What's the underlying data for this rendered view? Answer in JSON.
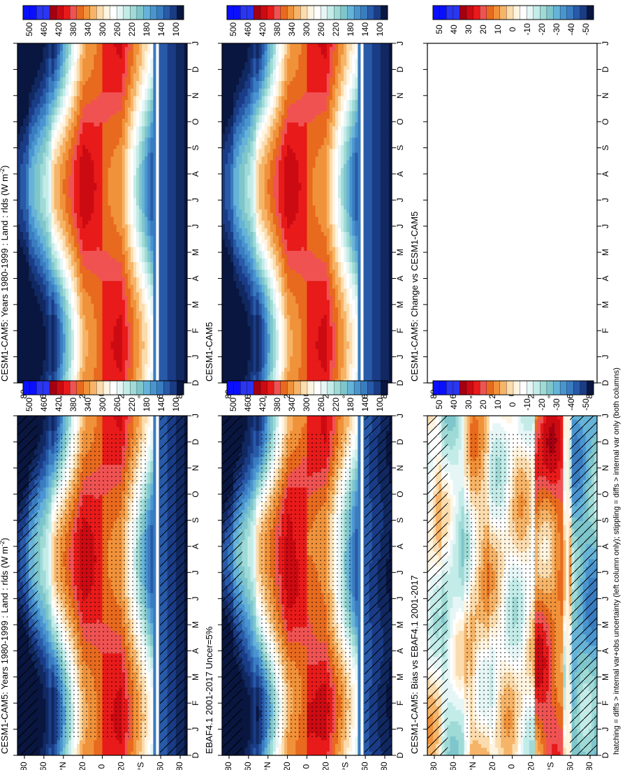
{
  "footer": "hatching = diffs > internal var+obs uncertainty (left column only); stippling = diffs > internal var only (both columns)",
  "chart_data": [
    {
      "type": "heatmap",
      "title": "CESM1-CAM5: Years 1980-1999 : Land : rlds (W m",
      "title_sup": "-2",
      "title_close": ")",
      "month_labels": [
        "D",
        "J",
        "F",
        "M",
        "A",
        "M",
        "J",
        "J",
        "A",
        "S",
        "O",
        "N",
        "D",
        "J"
      ],
      "lat_labels": [
        "80",
        "60",
        "°N",
        "20",
        "0",
        "20",
        "°S",
        "60",
        "80"
      ],
      "colorbar_labels": [
        "500",
        "460",
        "420",
        "380",
        "340",
        "300",
        "260",
        "220",
        "180",
        "140",
        "100"
      ],
      "hatching": true,
      "stippling": true
    },
    {
      "type": "heatmap",
      "title": "EBAF4.1 2001-2017 Uncer=5%",
      "month_labels": [
        "D",
        "J",
        "F",
        "M",
        "A",
        "M",
        "J",
        "J",
        "A",
        "S",
        "O",
        "N",
        "D",
        "J"
      ],
      "lat_labels": [
        "80",
        "60",
        "°N",
        "20",
        "0",
        "20",
        "°S",
        "60",
        "80"
      ],
      "colorbar_labels": [
        "500",
        "460",
        "420",
        "380",
        "340",
        "300",
        "260",
        "220",
        "180",
        "140",
        "100"
      ],
      "hatching": true,
      "stippling": true
    },
    {
      "type": "heatmap",
      "title": "CESM1-CAM5: Bias vs EBAF4.1 2001-2017",
      "month_labels": [
        "D",
        "J",
        "F",
        "M",
        "A",
        "M",
        "J",
        "J",
        "A",
        "S",
        "O",
        "N",
        "D",
        "J"
      ],
      "lat_labels": [
        "80",
        "60",
        "°N",
        "20",
        "0",
        "20",
        "°S",
        "60",
        "80"
      ],
      "colorbar_labels": [
        "50",
        "40",
        "30",
        "20",
        "10",
        "0",
        "-10",
        "-20",
        "-30",
        "-40",
        "-50"
      ],
      "hatching": true,
      "stippling": true
    },
    {
      "type": "heatmap",
      "title": "CESM1-CAM5: Years 1980-1999 : Land : rlds (W m",
      "title_sup": "-2",
      "title_close": ")",
      "month_labels": [
        "D",
        "J",
        "F",
        "M",
        "A",
        "M",
        "J",
        "J",
        "A",
        "S",
        "O",
        "N",
        "D",
        "J"
      ],
      "lat_labels": [
        "80",
        "60",
        "°N",
        "20",
        "0",
        "20",
        "°S",
        "60",
        "80"
      ],
      "colorbar_labels": [
        "500",
        "460",
        "420",
        "380",
        "340",
        "300",
        "260",
        "220",
        "180",
        "140",
        "100"
      ],
      "hatching": false,
      "stippling": false
    },
    {
      "type": "heatmap",
      "title": "CESM1-CAM5",
      "month_labels": [
        "D",
        "J",
        "F",
        "M",
        "A",
        "M",
        "J",
        "J",
        "A",
        "S",
        "O",
        "N",
        "D",
        "J"
      ],
      "lat_labels": [
        "80",
        "60",
        "°N",
        "20",
        "0",
        "20",
        "°S",
        "60",
        "80"
      ],
      "colorbar_labels": [
        "500",
        "460",
        "420",
        "380",
        "340",
        "300",
        "260",
        "220",
        "180",
        "140",
        "100"
      ],
      "hatching": false,
      "stippling": false
    },
    {
      "type": "heatmap",
      "title": "CESM1-CAM5: Change vs CESM1-CAM5",
      "month_labels": [
        "D",
        "J",
        "F",
        "M",
        "A",
        "M",
        "J",
        "J",
        "A",
        "S",
        "O",
        "N",
        "D",
        "J"
      ],
      "lat_labels": [
        "80",
        "60",
        "°N",
        "20",
        "0",
        "20",
        "°S",
        "60",
        "80"
      ],
      "colorbar_labels": [
        "50",
        "40",
        "30",
        "20",
        "10",
        "0",
        "-10",
        "-20",
        "-30",
        "-40",
        "-50"
      ],
      "hatching": false,
      "stippling": false,
      "empty": true
    }
  ]
}
